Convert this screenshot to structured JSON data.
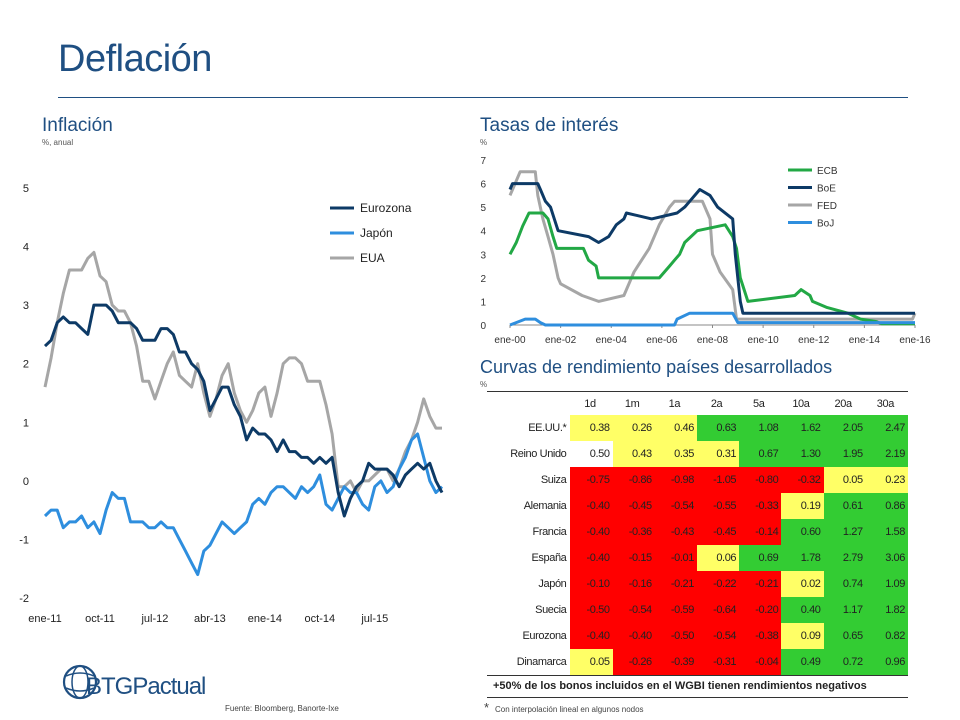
{
  "title": "Deflación",
  "left_chart": {
    "title": "Inflación",
    "unit": "%, anual"
  },
  "right_chart": {
    "title": "Tasas de interés",
    "unit": "%"
  },
  "table_section": {
    "title": "Curvas de rendimiento países desarrollados",
    "unit": "%"
  },
  "source": "Fuente: Bloomberg, Banorte-Ixe",
  "logo": "BTGPactual",
  "table_note": "+50% de los bonos incluidos en el WGBI tienen rendimientos negativos",
  "footnote_mark": "*",
  "footnote": "Con interpolación lineal en algunos nodos",
  "colors": {
    "navy": "#0d3a66",
    "blue": "#2e8ede",
    "gray": "#a6a6a6",
    "green": "#22a845",
    "yield_red": "#ff0000",
    "yield_yellow": "#ffff66",
    "yield_green": "#33cc33"
  },
  "chart_data": [
    {
      "type": "line",
      "title": "Inflación",
      "ylabel": "%, anual",
      "ylim": [
        -2,
        5
      ],
      "yticks": [
        -2,
        -1,
        0,
        1,
        2,
        3,
        4,
        5
      ],
      "xticks": [
        "ene-11",
        "oct-11",
        "jul-12",
        "abr-13",
        "ene-14",
        "oct-14",
        "jul-15"
      ],
      "legend_position": "top-right",
      "series": [
        {
          "name": "Eurozona",
          "color": "#0d3a66",
          "values": [
            2.3,
            2.4,
            2.7,
            2.8,
            2.7,
            2.7,
            2.6,
            2.5,
            3.0,
            3.0,
            3.0,
            2.9,
            2.7,
            2.7,
            2.7,
            2.6,
            2.4,
            2.4,
            2.4,
            2.6,
            2.6,
            2.5,
            2.2,
            2.2,
            2.0,
            1.9,
            1.7,
            1.2,
            1.4,
            1.6,
            1.6,
            1.3,
            1.1,
            0.7,
            0.9,
            0.8,
            0.8,
            0.7,
            0.5,
            0.7,
            0.5,
            0.5,
            0.4,
            0.4,
            0.3,
            0.4,
            0.3,
            0.4,
            -0.2,
            -0.6,
            -0.3,
            -0.1,
            0.0,
            0.3,
            0.2,
            0.2,
            0.2,
            0.1,
            -0.1,
            0.1,
            0.2,
            0.3,
            0.2,
            0.3,
            0.0,
            -0.2
          ]
        },
        {
          "name": "Japón",
          "color": "#2e8ede",
          "values": [
            -0.6,
            -0.5,
            -0.5,
            -0.8,
            -0.7,
            -0.7,
            -0.6,
            -0.8,
            -0.7,
            -0.9,
            -0.5,
            -0.2,
            -0.3,
            -0.3,
            -0.7,
            -0.7,
            -0.7,
            -0.8,
            -0.8,
            -0.7,
            -0.8,
            -0.8,
            -1.0,
            -1.2,
            -1.4,
            -1.6,
            -1.2,
            -1.1,
            -0.9,
            -0.7,
            -0.8,
            -0.9,
            -0.8,
            -0.7,
            -0.4,
            -0.3,
            -0.4,
            -0.2,
            -0.1,
            -0.1,
            -0.2,
            -0.3,
            -0.1,
            -0.2,
            -0.1,
            0.1,
            -0.4,
            -0.5,
            -0.3,
            -0.1,
            -0.2,
            -0.2,
            -0.4,
            -0.5,
            -0.1,
            0.0,
            -0.2,
            -0.1,
            0.2,
            0.4,
            0.7,
            0.8,
            0.4,
            0.0,
            -0.2,
            -0.1
          ]
        },
        {
          "name": "EUA",
          "color": "#a6a6a6",
          "values": [
            1.6,
            2.1,
            2.7,
            3.2,
            3.6,
            3.6,
            3.6,
            3.8,
            3.9,
            3.5,
            3.4,
            3.0,
            2.9,
            2.9,
            2.7,
            2.3,
            1.7,
            1.7,
            1.4,
            1.7,
            2.0,
            2.2,
            1.8,
            1.7,
            1.6,
            2.0,
            1.5,
            1.1,
            1.4,
            1.8,
            2.0,
            1.5,
            1.2,
            1.0,
            1.2,
            1.5,
            1.6,
            1.1,
            1.5,
            2.0,
            2.1,
            2.1,
            2.0,
            1.7,
            1.7,
            1.7,
            1.3,
            0.8,
            -0.1,
            -0.1,
            0.0,
            -0.2,
            0.0,
            0.0,
            0.1,
            0.2,
            0.2,
            0.0,
            0.2,
            0.5,
            0.7,
            1.0,
            1.4,
            1.1,
            0.9,
            0.9
          ]
        }
      ]
    },
    {
      "type": "line",
      "title": "Tasas de interés",
      "ylabel": "%",
      "ylim": [
        0,
        7
      ],
      "yticks": [
        0,
        1,
        2,
        3,
        4,
        5,
        6,
        7
      ],
      "xticks": [
        "ene-00",
        "ene-02",
        "ene-04",
        "ene-06",
        "ene-08",
        "ene-10",
        "ene-12",
        "ene-14",
        "ene-16"
      ],
      "xlim": [
        2000,
        2016
      ],
      "legend_position": "top-right",
      "series": [
        {
          "name": "ECB",
          "color": "#22a845",
          "points": [
            [
              2000,
              3.0
            ],
            [
              2000.25,
              3.5
            ],
            [
              2000.5,
              4.2
            ],
            [
              2000.75,
              4.75
            ],
            [
              2001.3,
              4.75
            ],
            [
              2001.5,
              4.5
            ],
            [
              2001.7,
              3.75
            ],
            [
              2001.85,
              3.25
            ],
            [
              2002.9,
              3.25
            ],
            [
              2003.1,
              2.75
            ],
            [
              2003.4,
              2.5
            ],
            [
              2003.5,
              2.0
            ],
            [
              2005.9,
              2.0
            ],
            [
              2006.1,
              2.25
            ],
            [
              2006.3,
              2.5
            ],
            [
              2006.5,
              2.75
            ],
            [
              2006.7,
              3.0
            ],
            [
              2006.9,
              3.5
            ],
            [
              2007.4,
              4.0
            ],
            [
              2008.5,
              4.25
            ],
            [
              2008.8,
              3.75
            ],
            [
              2008.95,
              3.25
            ],
            [
              2009.1,
              2.0
            ],
            [
              2009.25,
              1.5
            ],
            [
              2009.4,
              1.0
            ],
            [
              2011.25,
              1.25
            ],
            [
              2011.5,
              1.5
            ],
            [
              2011.85,
              1.25
            ],
            [
              2011.95,
              1.0
            ],
            [
              2012.5,
              0.75
            ],
            [
              2013.35,
              0.5
            ],
            [
              2013.85,
              0.25
            ],
            [
              2014.45,
              0.15
            ],
            [
              2014.7,
              0.05
            ],
            [
              2016,
              0.05
            ]
          ]
        },
        {
          "name": "BoE",
          "color": "#0d3a66",
          "points": [
            [
              2000,
              5.75
            ],
            [
              2000.1,
              6.0
            ],
            [
              2001.1,
              6.0
            ],
            [
              2001.2,
              5.75
            ],
            [
              2001.4,
              5.25
            ],
            [
              2001.6,
              5.0
            ],
            [
              2001.75,
              4.5
            ],
            [
              2001.9,
              4.0
            ],
            [
              2003.1,
              3.75
            ],
            [
              2003.5,
              3.5
            ],
            [
              2003.9,
              3.75
            ],
            [
              2004.2,
              4.25
            ],
            [
              2004.5,
              4.5
            ],
            [
              2004.6,
              4.75
            ],
            [
              2005.6,
              4.5
            ],
            [
              2006.6,
              4.75
            ],
            [
              2006.9,
              5.0
            ],
            [
              2007.1,
              5.25
            ],
            [
              2007.5,
              5.75
            ],
            [
              2007.9,
              5.5
            ],
            [
              2008.2,
              5.0
            ],
            [
              2008.8,
              4.5
            ],
            [
              2008.9,
              3.0
            ],
            [
              2009.0,
              2.0
            ],
            [
              2009.1,
              1.0
            ],
            [
              2009.2,
              0.5
            ],
            [
              2016,
              0.5
            ]
          ]
        },
        {
          "name": "FED",
          "color": "#a6a6a6",
          "points": [
            [
              2000,
              5.5
            ],
            [
              2000.2,
              6.0
            ],
            [
              2000.4,
              6.5
            ],
            [
              2001.0,
              6.5
            ],
            [
              2001.1,
              5.5
            ],
            [
              2001.3,
              4.5
            ],
            [
              2001.5,
              3.75
            ],
            [
              2001.7,
              3.0
            ],
            [
              2001.9,
              2.0
            ],
            [
              2002.0,
              1.75
            ],
            [
              2002.85,
              1.25
            ],
            [
              2003.5,
              1.0
            ],
            [
              2004.5,
              1.25
            ],
            [
              2004.9,
              2.25
            ],
            [
              2005.5,
              3.25
            ],
            [
              2005.9,
              4.25
            ],
            [
              2006.3,
              5.0
            ],
            [
              2006.5,
              5.25
            ],
            [
              2007.6,
              5.25
            ],
            [
              2007.9,
              4.5
            ],
            [
              2008.0,
              3.0
            ],
            [
              2008.3,
              2.25
            ],
            [
              2008.8,
              1.5
            ],
            [
              2008.95,
              0.25
            ],
            [
              2015.9,
              0.25
            ],
            [
              2016,
              0.5
            ]
          ]
        },
        {
          "name": "BoJ",
          "color": "#2e8ede",
          "points": [
            [
              2000,
              0.0
            ],
            [
              2000.6,
              0.25
            ],
            [
              2001.0,
              0.25
            ],
            [
              2001.2,
              0.1
            ],
            [
              2001.4,
              0.0
            ],
            [
              2006.5,
              0.0
            ],
            [
              2006.6,
              0.25
            ],
            [
              2007.1,
              0.5
            ],
            [
              2008.8,
              0.5
            ],
            [
              2008.9,
              0.3
            ],
            [
              2009.0,
              0.1
            ],
            [
              2016,
              0.1
            ]
          ]
        }
      ]
    },
    {
      "type": "table",
      "title": "Curvas de rendimiento países desarrollados",
      "columns": [
        "1d",
        "1m",
        "1a",
        "2a",
        "5a",
        "10a",
        "20a",
        "30a"
      ],
      "rows": [
        {
          "country": "EE.UU.*",
          "values": [
            "0.38",
            "0.26",
            "0.46",
            "0.63",
            "1.08",
            "1.62",
            "2.05",
            "2.47"
          ],
          "colors": [
            "y",
            "y",
            "y",
            "g",
            "g",
            "g",
            "g",
            "g"
          ]
        },
        {
          "country": "Reino Unido",
          "values": [
            "0.50",
            "0.43",
            "0.35",
            "0.31",
            "0.67",
            "1.30",
            "1.95",
            "2.19"
          ],
          "colors": [
            "w",
            "y",
            "y",
            "y",
            "g",
            "g",
            "g",
            "g"
          ]
        },
        {
          "country": "Suiza",
          "values": [
            "-0.75",
            "-0.86",
            "-0.98",
            "-1.05",
            "-0.80",
            "-0.32",
            "0.05",
            "0.23"
          ],
          "colors": [
            "r",
            "r",
            "r",
            "r",
            "r",
            "r",
            "y",
            "y"
          ]
        },
        {
          "country": "Alemania",
          "values": [
            "-0.40",
            "-0.45",
            "-0.54",
            "-0.55",
            "-0.33",
            "0.19",
            "0.61",
            "0.86"
          ],
          "colors": [
            "r",
            "r",
            "r",
            "r",
            "r",
            "y",
            "g",
            "g"
          ]
        },
        {
          "country": "Francia",
          "values": [
            "-0.40",
            "-0.36",
            "-0.43",
            "-0.45",
            "-0.14",
            "0.60",
            "1.27",
            "1.58"
          ],
          "colors": [
            "r",
            "r",
            "r",
            "r",
            "r",
            "g",
            "g",
            "g"
          ]
        },
        {
          "country": "España",
          "values": [
            "-0.40",
            "-0.15",
            "-0.01",
            "0.06",
            "0.69",
            "1.78",
            "2.79",
            "3.06"
          ],
          "colors": [
            "r",
            "r",
            "r",
            "y",
            "g",
            "g",
            "g",
            "g"
          ]
        },
        {
          "country": "Japón",
          "values": [
            "-0.10",
            "-0.16",
            "-0.21",
            "-0.22",
            "-0.21",
            "0.02",
            "0.74",
            "1.09"
          ],
          "colors": [
            "r",
            "r",
            "r",
            "r",
            "r",
            "y",
            "g",
            "g"
          ]
        },
        {
          "country": "Suecia",
          "values": [
            "-0.50",
            "-0.54",
            "-0.59",
            "-0.64",
            "-0.20",
            "0.40",
            "1.17",
            "1.82"
          ],
          "colors": [
            "r",
            "r",
            "r",
            "r",
            "r",
            "g",
            "g",
            "g"
          ]
        },
        {
          "country": "Eurozona",
          "values": [
            "-0.40",
            "-0.40",
            "-0.50",
            "-0.54",
            "-0.38",
            "0.09",
            "0.65",
            "0.82"
          ],
          "colors": [
            "r",
            "r",
            "r",
            "r",
            "r",
            "y",
            "g",
            "g"
          ]
        },
        {
          "country": "Dinamarca",
          "values": [
            "0.05",
            "-0.26",
            "-0.39",
            "-0.31",
            "-0.04",
            "0.49",
            "0.72",
            "0.96"
          ],
          "colors": [
            "y",
            "r",
            "r",
            "r",
            "r",
            "g",
            "g",
            "g"
          ]
        }
      ]
    }
  ]
}
